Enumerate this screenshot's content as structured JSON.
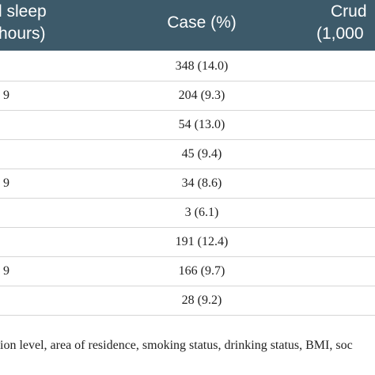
{
  "header": {
    "col1": [
      "l sleep",
      "hours)"
    ],
    "col2": "Case (%)",
    "col3": [
      "Crud",
      "(1,000"
    ]
  },
  "table": {
    "rows": [
      {
        "case": "348 (14.0)"
      },
      {
        "label": "9",
        "case": "204 (9.3)"
      },
      {
        "case": "54 (13.0)"
      },
      {
        "case": "45 (9.4)"
      },
      {
        "label": "9",
        "case": "34 (8.6)"
      },
      {
        "case": "3 (6.1)"
      },
      {
        "case": "191 (12.4)"
      },
      {
        "label": "9",
        "case": "166 (9.7)"
      },
      {
        "case": "28 (9.2)"
      }
    ]
  },
  "footnote": "ion level, area of residence, smoking status, drinking status, BMI, soc"
}
